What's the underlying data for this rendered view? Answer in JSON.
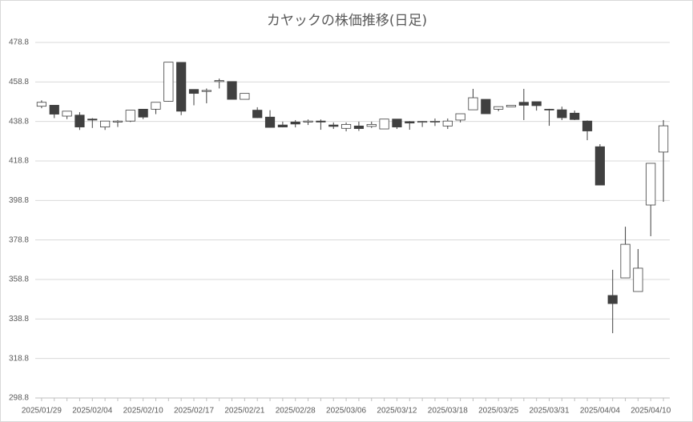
{
  "chart_data": {
    "type": "candlestick",
    "title": "カヤックの株価推移(日足)",
    "categories": [
      "2025/01/29",
      null,
      null,
      null,
      "2025/02/04",
      null,
      null,
      null,
      "2025/02/10",
      null,
      null,
      null,
      "2025/02/17",
      null,
      null,
      null,
      "2025/02/21",
      null,
      null,
      null,
      "2025/02/28",
      null,
      null,
      null,
      "2025/03/06",
      null,
      null,
      null,
      "2025/03/12",
      null,
      null,
      null,
      "2025/03/18",
      null,
      null,
      null,
      "2025/03/25",
      null,
      null,
      null,
      "2025/03/31",
      null,
      null,
      null,
      "2025/04/04",
      null,
      null,
      null,
      "2025/04/10",
      null
    ],
    "open": [
      446.5,
      447,
      441.5,
      442,
      440,
      436,
      438.5,
      439,
      445,
      445,
      449,
      468.7,
      455,
      454,
      459,
      459,
      450,
      444.5,
      441,
      437,
      438.5,
      438.5,
      439,
      437,
      435.3,
      436.5,
      436.3,
      435,
      440,
      438.7,
      438.5,
      438.5,
      436.5,
      439.5,
      444.7,
      450,
      445,
      446.2,
      448.5,
      448.8,
      445,
      444.7,
      443,
      439,
      426,
      350.7,
      359.6,
      352.7,
      396.5,
      423.3
    ],
    "high": [
      449.5,
      447,
      444,
      443.5,
      440.5,
      439,
      439.5,
      444.5,
      445,
      448.5,
      468.8,
      468.7,
      455,
      455.5,
      460.5,
      459,
      453,
      446,
      444.5,
      438.7,
      439.5,
      439.8,
      439.8,
      438.3,
      438.3,
      438.7,
      438.7,
      440,
      440,
      439,
      439,
      440.3,
      440.3,
      442.7,
      455.3,
      450,
      446.3,
      447,
      455.3,
      448.8,
      445.2,
      446.3,
      444.3,
      439.3,
      427.3,
      363.7,
      385.5,
      374.2,
      417.6,
      439.5
    ],
    "low": [
      445.5,
      440.5,
      440,
      434.5,
      435.5,
      434.5,
      436,
      438.5,
      440,
      442.5,
      448.8,
      442,
      447,
      448,
      455.5,
      450,
      450,
      440.5,
      435.8,
      435.8,
      435.8,
      437,
      434.6,
      435,
      433.8,
      434,
      435.5,
      435,
      435,
      434.6,
      436,
      436.5,
      435,
      438.3,
      444.7,
      442.7,
      444,
      446.2,
      439.5,
      444.3,
      436.6,
      439.5,
      439.5,
      429.3,
      406.6,
      331.6,
      359.6,
      352.7,
      380.7,
      398.1
    ],
    "close": [
      448.5,
      442.5,
      444,
      436,
      439.5,
      439,
      439,
      444.5,
      441,
      448.5,
      468.8,
      444,
      453,
      454.5,
      459.5,
      450,
      453,
      440.7,
      435.8,
      436,
      437.5,
      439,
      438.5,
      436.3,
      437.3,
      435.2,
      437.3,
      440,
      436,
      438,
      438.8,
      438.9,
      439,
      442.7,
      450.8,
      442.7,
      446.3,
      447,
      447,
      446.8,
      444.8,
      440.7,
      439.8,
      434,
      406.6,
      346.6,
      376.6,
      364.5,
      417.6,
      436.6
    ],
    "up_color": "#ffffff",
    "down_color": "#404040",
    "edge_color": "#404040",
    "ylim": [
      298.8,
      478.8
    ],
    "yticks": [
      298.8,
      318.8,
      338.8,
      358.8,
      378.8,
      398.8,
      418.8,
      438.8,
      458.8,
      478.8
    ],
    "grid": true
  }
}
